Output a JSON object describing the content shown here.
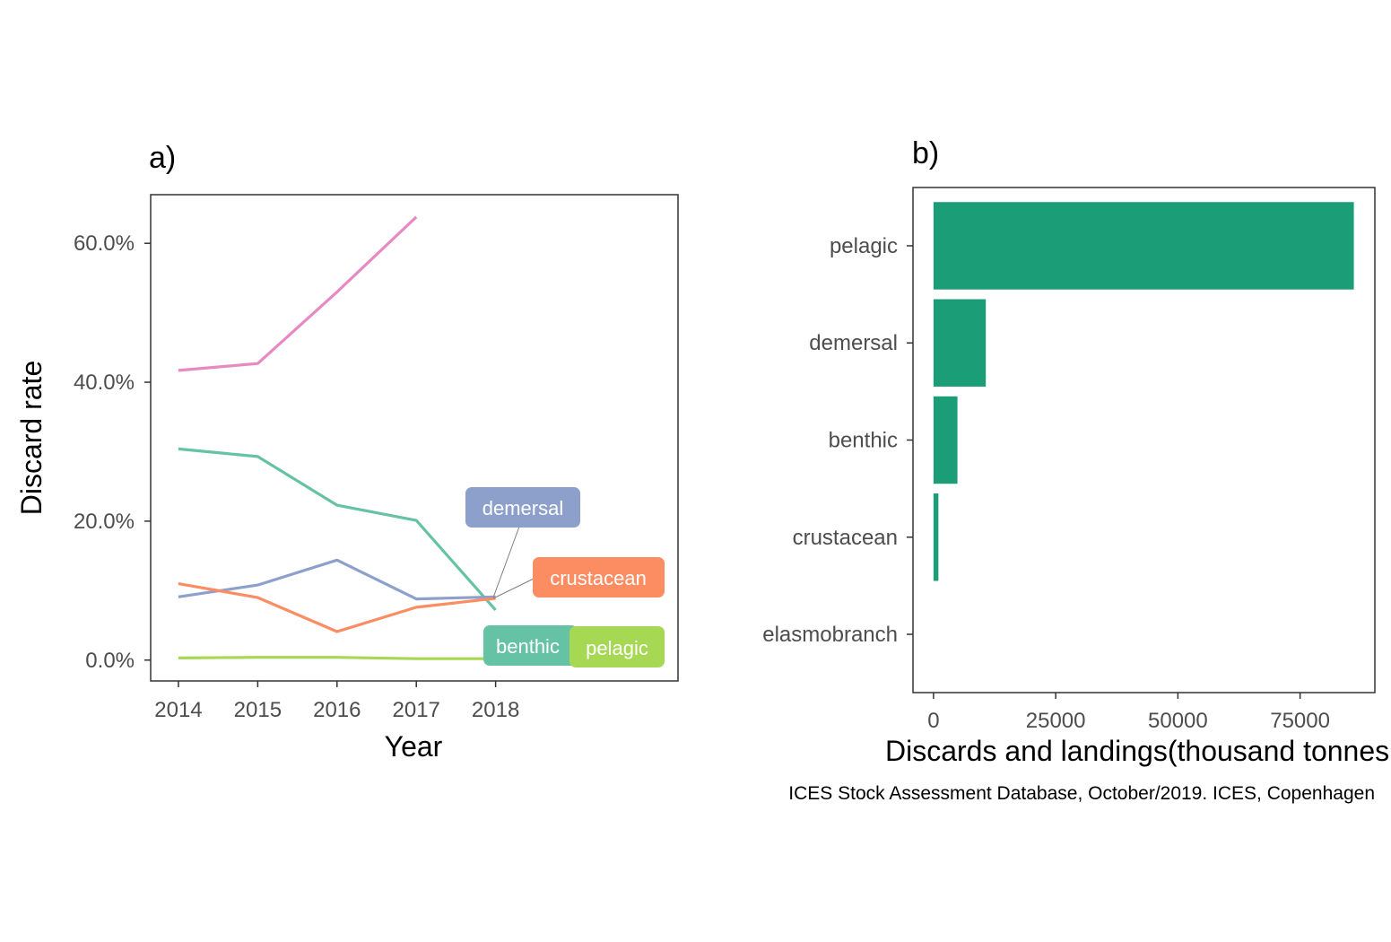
{
  "caption": "ICES Stock Assessment Database, October/2019. ICES, Copenhagen",
  "colors": {
    "pelagic": "#A6D854",
    "demersal": "#8DA0CB",
    "benthic": "#66C2A5",
    "crustacean": "#FC8D62",
    "elasmobranch": "#E78AC3",
    "bar_fill": "#1B9E77"
  },
  "chart_data": [
    {
      "type": "line",
      "title": "a)",
      "xlabel": "Year",
      "ylabel": "Discard rate",
      "x": [
        2014,
        2015,
        2016,
        2017,
        2018
      ],
      "x_tick_labels": [
        "2014",
        "2015",
        "2016",
        "2017",
        "2018"
      ],
      "xlim": [
        2013.65,
        2020.3
      ],
      "ylim": [
        -3.0,
        67.0
      ],
      "y_ticks": [
        0,
        20,
        40,
        60
      ],
      "y_tick_labels": [
        "0.0%",
        "20.0%",
        "40.0%",
        "60.0%"
      ],
      "grid": false,
      "series": [
        {
          "key": "elasmobranch",
          "values": [
            41.7,
            42.7,
            53.0,
            63.8,
            null
          ]
        },
        {
          "key": "benthic",
          "name": "benthic",
          "values": [
            30.4,
            29.3,
            22.3,
            20.1,
            7.2
          ]
        },
        {
          "key": "demersal",
          "name": "demersal",
          "values": [
            9.1,
            10.8,
            14.4,
            8.8,
            9.1
          ]
        },
        {
          "key": "crustacean",
          "name": "crustacean",
          "values": [
            11.0,
            9.0,
            4.1,
            7.6,
            8.9
          ]
        },
        {
          "key": "pelagic",
          "name": "pelagic",
          "values": [
            0.3,
            0.4,
            0.4,
            0.2,
            0.2
          ]
        }
      ]
    },
    {
      "type": "bar",
      "orientation": "horizontal",
      "title": "b)",
      "xlabel": "Discards and landings(thousand tonnes",
      "ylabel": "",
      "categories": [
        "pelagic",
        "demersal",
        "benthic",
        "crustacean",
        "elasmobranch"
      ],
      "values": [
        86000,
        10700,
        4900,
        1000,
        0
      ],
      "xlim": [
        -4200,
        90300
      ],
      "x_ticks": [
        0,
        25000,
        50000,
        75000
      ],
      "x_tick_labels": [
        "0",
        "25000",
        "50000",
        "75000"
      ],
      "grid": false
    }
  ]
}
